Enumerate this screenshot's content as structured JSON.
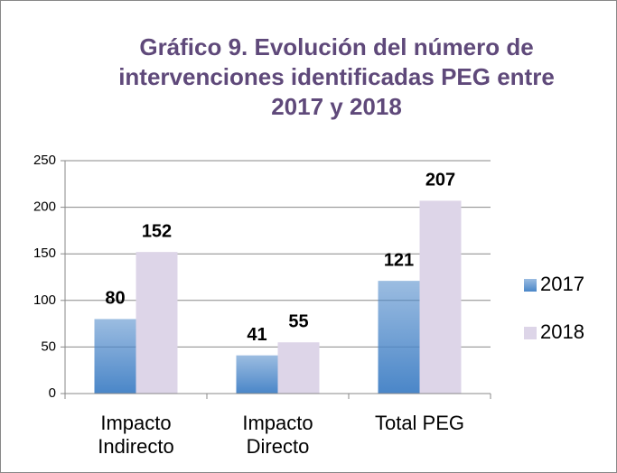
{
  "chart_data": {
    "type": "bar",
    "title": "Gráfico 9. Evolución del número de intervenciones identificadas PEG entre 2017 y 2018",
    "categories": [
      "Impacto Indirecto",
      "Impacto Directo",
      "Total PEG"
    ],
    "series": [
      {
        "name": "2017",
        "color": "#4a86c8",
        "values": [
          80,
          41,
          121
        ]
      },
      {
        "name": "2018",
        "color": "#ddd5e8",
        "values": [
          152,
          55,
          207
        ]
      }
    ],
    "ylim": [
      0,
      250
    ],
    "yticks": [
      0,
      50,
      100,
      150,
      200,
      250
    ],
    "grid": true,
    "legend": "right"
  }
}
